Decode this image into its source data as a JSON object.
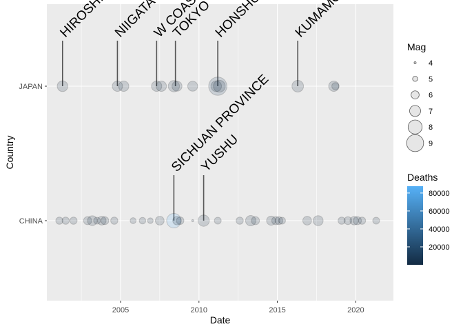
{
  "chart_data": {
    "type": "scatter",
    "xlabel": "Date",
    "ylabel": "Country",
    "xlim": [
      2000.3,
      2022.4
    ],
    "x_ticks": [
      2005,
      2010,
      2015,
      2020
    ],
    "categories": [
      "CHINA",
      "JAPAN"
    ],
    "grid": true,
    "legend_position": "right",
    "size_legend": {
      "title": "Mag",
      "values": [
        4,
        5,
        6,
        7,
        8,
        9
      ]
    },
    "color_legend": {
      "title": "Deaths",
      "values": [
        20000,
        40000,
        60000,
        80000
      ],
      "min": 0,
      "max": 87600,
      "low_color": "#132B43",
      "high_color": "#56B1F7"
    },
    "series": [
      {
        "category": "JAPAN",
        "points": [
          {
            "x": 2001.3,
            "mag": 6.7,
            "deaths": 2
          },
          {
            "x": 2004.8,
            "mag": 6.6,
            "deaths": 40
          },
          {
            "x": 2005.2,
            "mag": 6.6,
            "deaths": 1
          },
          {
            "x": 2007.3,
            "mag": 6.6,
            "deaths": 1
          },
          {
            "x": 2007.6,
            "mag": 6.6,
            "deaths": 11
          },
          {
            "x": 2008.4,
            "mag": 6.9,
            "deaths": 13
          },
          {
            "x": 2008.6,
            "mag": 6.5,
            "deaths": 1
          },
          {
            "x": 2009.6,
            "mag": 6.5,
            "deaths": 1
          },
          {
            "x": 2011.1,
            "mag": 6.7,
            "deaths": 1
          },
          {
            "x": 2011.2,
            "mag": 9.1,
            "deaths": 18428
          },
          {
            "x": 2011.3,
            "mag": 7.1,
            "deaths": 4
          },
          {
            "x": 2016.3,
            "mag": 7.0,
            "deaths": 273
          },
          {
            "x": 2018.6,
            "mag": 6.6,
            "deaths": 41
          },
          {
            "x": 2018.7,
            "mag": 5.6,
            "deaths": 4
          }
        ]
      },
      {
        "category": "CHINA",
        "points": [
          {
            "x": 2001.1,
            "mag": 5.6,
            "deaths": 1
          },
          {
            "x": 2001.5,
            "mag": 5.6,
            "deaths": 3
          },
          {
            "x": 2002.0,
            "mag": 5.6,
            "deaths": 1
          },
          {
            "x": 2002.9,
            "mag": 5.9,
            "deaths": 3
          },
          {
            "x": 2003.2,
            "mag": 6.4,
            "deaths": 268
          },
          {
            "x": 2003.5,
            "mag": 5.5,
            "deaths": 2
          },
          {
            "x": 2003.8,
            "mag": 6.1,
            "deaths": 16
          },
          {
            "x": 2004.0,
            "mag": 5.8,
            "deaths": 4
          },
          {
            "x": 2004.6,
            "mag": 5.6,
            "deaths": 1
          },
          {
            "x": 2005.8,
            "mag": 5.2,
            "deaths": 13
          },
          {
            "x": 2006.4,
            "mag": 5.4,
            "deaths": 1
          },
          {
            "x": 2006.9,
            "mag": 5.1,
            "deaths": 22
          },
          {
            "x": 2007.5,
            "mag": 6.1,
            "deaths": 3
          },
          {
            "x": 2008.4,
            "mag": 7.9,
            "deaths": 87587
          },
          {
            "x": 2008.6,
            "mag": 6.0,
            "deaths": 3
          },
          {
            "x": 2008.8,
            "mag": 5.7,
            "deaths": 3
          },
          {
            "x": 2009.6,
            "mag": 4.0,
            "deaths": 1
          },
          {
            "x": 2010.3,
            "mag": 6.9,
            "deaths": 2698
          },
          {
            "x": 2011.2,
            "mag": 5.5,
            "deaths": 25
          },
          {
            "x": 2012.6,
            "mag": 5.6,
            "deaths": 81
          },
          {
            "x": 2013.3,
            "mag": 6.6,
            "deaths": 196
          },
          {
            "x": 2013.6,
            "mag": 5.9,
            "deaths": 95
          },
          {
            "x": 2014.6,
            "mag": 6.2,
            "deaths": 617
          },
          {
            "x": 2014.9,
            "mag": 5.9,
            "deaths": 5
          },
          {
            "x": 2015.1,
            "mag": 5.8,
            "deaths": 1
          },
          {
            "x": 2015.3,
            "mag": 5.5,
            "deaths": 1
          },
          {
            "x": 2016.9,
            "mag": 6.1,
            "deaths": 1
          },
          {
            "x": 2017.6,
            "mag": 6.5,
            "deaths": 25
          },
          {
            "x": 2019.1,
            "mag": 5.6,
            "deaths": 2
          },
          {
            "x": 2019.5,
            "mag": 5.8,
            "deaths": 13
          },
          {
            "x": 2019.9,
            "mag": 6.0,
            "deaths": 4
          },
          {
            "x": 2020.1,
            "mag": 5.9,
            "deaths": 1
          },
          {
            "x": 2020.4,
            "mag": 5.6,
            "deaths": 1
          },
          {
            "x": 2021.3,
            "mag": 5.5,
            "deaths": 3
          }
        ]
      }
    ],
    "annotations": [
      {
        "category": "JAPAN",
        "x": 2001.3,
        "text": "HIROSHIMA"
      },
      {
        "category": "JAPAN",
        "x": 2004.8,
        "text": "NIIGATA"
      },
      {
        "category": "JAPAN",
        "x": 2007.3,
        "text": "W COAST"
      },
      {
        "category": "JAPAN",
        "x": 2008.5,
        "text": "TOKYO"
      },
      {
        "category": "JAPAN",
        "x": 2011.2,
        "text": "HONSHU"
      },
      {
        "category": "JAPAN",
        "x": 2016.3,
        "text": "KUMAMOTO"
      },
      {
        "category": "CHINA",
        "x": 2008.4,
        "text": "SICHUAN PROVINCE"
      },
      {
        "category": "CHINA",
        "x": 2010.3,
        "text": "YUSHU"
      }
    ]
  }
}
